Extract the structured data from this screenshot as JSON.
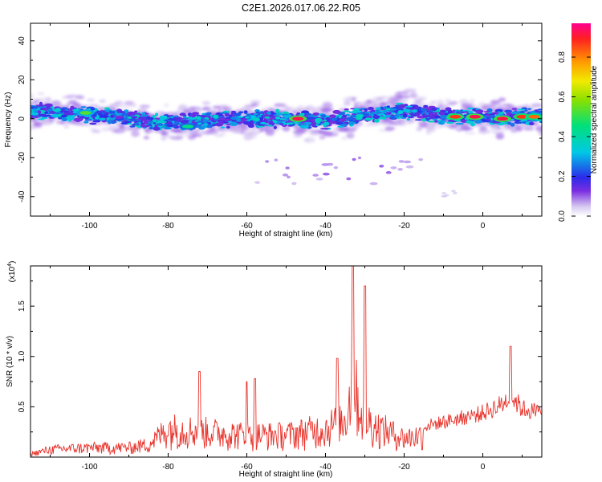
{
  "page_title": "C2E1.2026.017.06.22.R05",
  "chart_data": [
    {
      "type": "heatmap",
      "xlabel": "Height of straight line (km)",
      "ylabel": "Frequency (Hz)",
      "xlim": [
        -115,
        15
      ],
      "ylim": [
        -50,
        49
      ],
      "x_ticks": [
        "-100",
        "-80",
        "-60",
        "-40",
        "-20",
        "0"
      ],
      "x_tick_values": [
        -100,
        -80,
        -60,
        -40,
        -20,
        0
      ],
      "y_ticks": [
        "40",
        "20",
        "0",
        "-20",
        "-40"
      ],
      "y_tick_values": [
        40,
        20,
        0,
        -20,
        -40
      ],
      "band_center": [
        [
          -115,
          4
        ],
        [
          -100,
          2
        ],
        [
          -80,
          -2
        ],
        [
          -60,
          0
        ],
        [
          -40,
          -1
        ],
        [
          -30,
          2
        ],
        [
          -20,
          4
        ],
        [
          -10,
          2
        ],
        [
          0,
          1
        ],
        [
          15,
          1
        ]
      ],
      "band_halfwidth_hz": 5,
      "strong_blobs": [
        [
          -101,
          3,
          0.55
        ],
        [
          -75,
          -4,
          0.45
        ],
        [
          -47,
          0,
          0.95
        ],
        [
          -7,
          1,
          0.9
        ],
        [
          -2,
          1,
          0.95
        ],
        [
          5,
          0,
          0.95
        ],
        [
          10,
          1,
          0.9
        ],
        [
          13,
          1,
          0.85
        ]
      ],
      "colorbar": {
        "label": "Normalized spectral amplitude",
        "ticks": [
          "0.0",
          "0.2",
          "0.4",
          "0.6",
          "0.8"
        ],
        "tick_values": [
          0.0,
          0.2,
          0.4,
          0.6,
          0.8
        ],
        "range": [
          0,
          0.97
        ]
      }
    },
    {
      "type": "line",
      "series_color": "#e8322a",
      "xlabel": "Height of straight line (km)",
      "ylabel": "SNR (10 * v/v)",
      "scale_label": "(x10^4)",
      "scale_base": "(x10",
      "scale_exp": "4",
      "xlim": [
        -115,
        15
      ],
      "ylim": [
        0,
        1.9
      ],
      "x_ticks": [
        "-100",
        "-80",
        "-60",
        "-40",
        "-20",
        "0"
      ],
      "x_tick_values": [
        -100,
        -80,
        -60,
        -40,
        -20,
        0
      ],
      "y_ticks": [
        "0.5",
        "1.0",
        "1.5"
      ],
      "y_tick_values": [
        0.5,
        1.0,
        1.5
      ],
      "envelope": [
        [
          -115,
          0.05
        ],
        [
          -110,
          0.12
        ],
        [
          -100,
          0.15
        ],
        [
          -90,
          0.15
        ],
        [
          -85,
          0.2
        ],
        [
          -80,
          0.45
        ],
        [
          -70,
          0.4
        ],
        [
          -60,
          0.35
        ],
        [
          -50,
          0.35
        ],
        [
          -40,
          0.45
        ],
        [
          -35,
          0.6
        ],
        [
          -33,
          1.2
        ],
        [
          -31,
          0.7
        ],
        [
          -28,
          0.5
        ],
        [
          -20,
          0.3
        ],
        [
          -15,
          0.35
        ],
        [
          -10,
          0.4
        ],
        [
          -5,
          0.45
        ],
        [
          0,
          0.5
        ],
        [
          5,
          0.6
        ],
        [
          7,
          0.7
        ],
        [
          10,
          0.55
        ],
        [
          15,
          0.5
        ]
      ],
      "peaks": [
        [
          -72,
          0.85
        ],
        [
          -60,
          0.75
        ],
        [
          -58,
          0.78
        ],
        [
          -33,
          1.9
        ],
        [
          -30,
          1.7
        ],
        [
          -37,
          0.98
        ],
        [
          7,
          1.1
        ]
      ]
    }
  ]
}
